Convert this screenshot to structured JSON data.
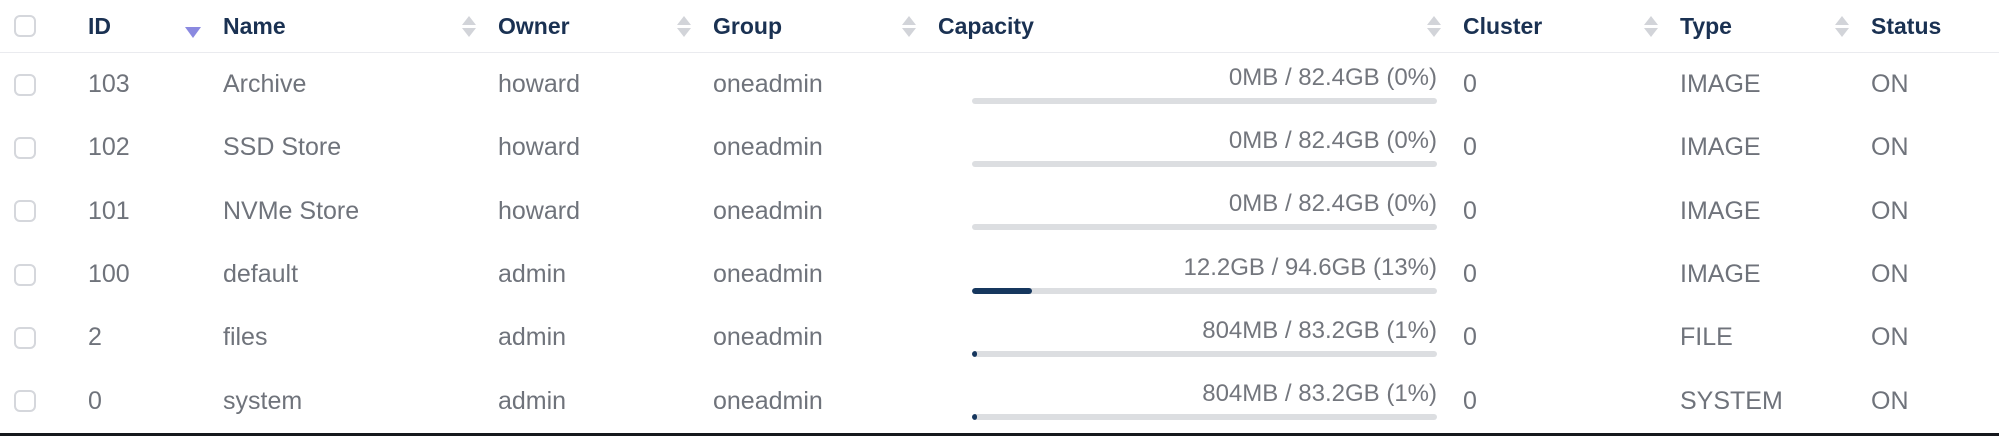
{
  "table": {
    "columns": [
      {
        "key": "id",
        "label": "ID",
        "sort": "desc"
      },
      {
        "key": "name",
        "label": "Name",
        "sort": "none"
      },
      {
        "key": "owner",
        "label": "Owner",
        "sort": "none"
      },
      {
        "key": "group",
        "label": "Group",
        "sort": "none"
      },
      {
        "key": "capacity",
        "label": "Capacity",
        "sort": "none"
      },
      {
        "key": "cluster",
        "label": "Cluster",
        "sort": "none"
      },
      {
        "key": "type",
        "label": "Type",
        "sort": "none"
      },
      {
        "key": "status",
        "label": "Status",
        "sort": "hidden"
      }
    ],
    "rows": [
      {
        "id": "103",
        "name": "Archive",
        "owner": "howard",
        "group": "oneadmin",
        "capacity": "0MB / 82.4GB (0%)",
        "capacity_pct": 0,
        "cluster": "0",
        "type": "IMAGE",
        "status": "ON"
      },
      {
        "id": "102",
        "name": "SSD Store",
        "owner": "howard",
        "group": "oneadmin",
        "capacity": "0MB / 82.4GB (0%)",
        "capacity_pct": 0,
        "cluster": "0",
        "type": "IMAGE",
        "status": "ON"
      },
      {
        "id": "101",
        "name": "NVMe Store",
        "owner": "howard",
        "group": "oneadmin",
        "capacity": "0MB / 82.4GB (0%)",
        "capacity_pct": 0,
        "cluster": "0",
        "type": "IMAGE",
        "status": "ON"
      },
      {
        "id": "100",
        "name": "default",
        "owner": "admin",
        "group": "oneadmin",
        "capacity": "12.2GB / 94.6GB (13%)",
        "capacity_pct": 13,
        "cluster": "0",
        "type": "IMAGE",
        "status": "ON"
      },
      {
        "id": "2",
        "name": "files",
        "owner": "admin",
        "group": "oneadmin",
        "capacity": "804MB / 83.2GB (1%)",
        "capacity_pct": 1,
        "cluster": "0",
        "type": "FILE",
        "status": "ON"
      },
      {
        "id": "0",
        "name": "system",
        "owner": "admin",
        "group": "oneadmin",
        "capacity": "804MB / 83.2GB (1%)",
        "capacity_pct": 1,
        "cluster": "0",
        "type": "SYSTEM",
        "status": "ON"
      }
    ],
    "colors": {
      "header_text": "#1a3152",
      "row_text": "#6f737b",
      "sort_active": "#8a89e0",
      "sort_inactive": "#d2d4d9",
      "progress_track": "#dcdee1",
      "progress_fill": "#16375e",
      "header_divider": "#eaebef",
      "bottom_border": "#15181d"
    }
  }
}
